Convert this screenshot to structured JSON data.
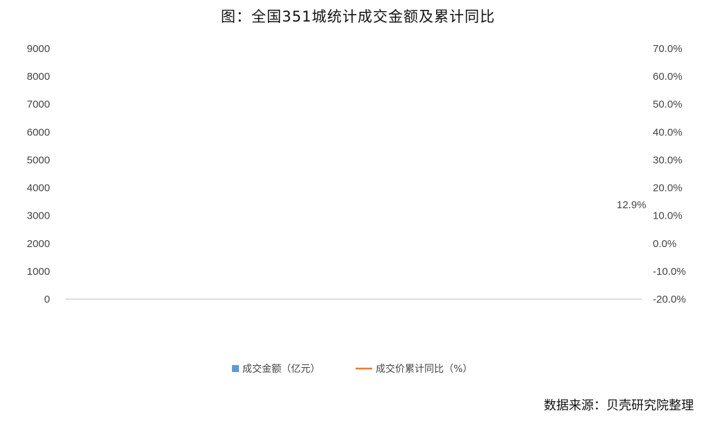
{
  "chart_data": {
    "type": "bar+line",
    "title": "图：全国351城统计成交金额及累计同比",
    "source": "数据来源：贝壳研究院整理",
    "categories": [],
    "x_tick_labels": [],
    "series": [
      {
        "name": "成交金额（亿元）",
        "type": "bar",
        "axis": "left",
        "color": "#5B9BD5",
        "values": []
      },
      {
        "name": "成交价累计同比（%）",
        "type": "line",
        "axis": "right",
        "color": "#ED7D31",
        "values": []
      }
    ],
    "y_left": {
      "min": 0,
      "max": 9000,
      "step": 1000,
      "ticks": [
        "0",
        "1000",
        "2000",
        "3000",
        "4000",
        "5000",
        "6000",
        "7000",
        "8000",
        "9000"
      ]
    },
    "y_right": {
      "min": -20,
      "max": 70,
      "step": 10,
      "ticks": [
        "-20.0%",
        "-10.0%",
        "0.0%",
        "10.0%",
        "20.0%",
        "30.0%",
        "40.0%",
        "50.0%",
        "60.0%",
        "70.0%"
      ]
    },
    "annotations": [
      {
        "text": "12.9%"
      }
    ],
    "legend_position": "bottom"
  }
}
